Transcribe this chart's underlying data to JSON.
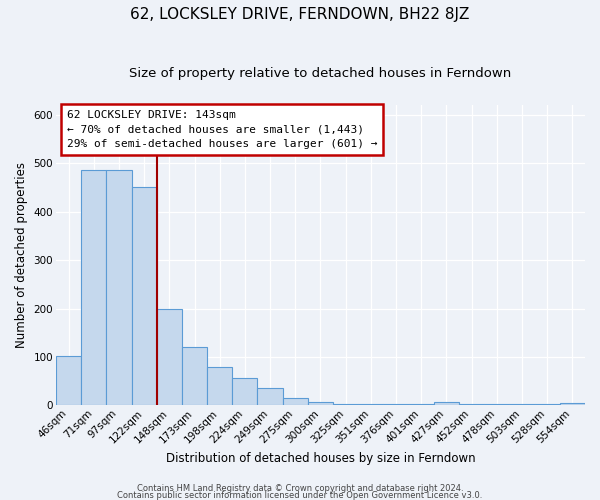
{
  "title": "62, LOCKSLEY DRIVE, FERNDOWN, BH22 8JZ",
  "subtitle": "Size of property relative to detached houses in Ferndown",
  "xlabel": "Distribution of detached houses by size in Ferndown",
  "ylabel": "Number of detached properties",
  "footer_line1": "Contains HM Land Registry data © Crown copyright and database right 2024.",
  "footer_line2": "Contains public sector information licensed under the Open Government Licence v3.0.",
  "categories": [
    "46sqm",
    "71sqm",
    "97sqm",
    "122sqm",
    "148sqm",
    "173sqm",
    "198sqm",
    "224sqm",
    "249sqm",
    "275sqm",
    "300sqm",
    "325sqm",
    "351sqm",
    "376sqm",
    "401sqm",
    "427sqm",
    "452sqm",
    "478sqm",
    "503sqm",
    "528sqm",
    "554sqm"
  ],
  "values": [
    103,
    487,
    487,
    452,
    200,
    120,
    80,
    57,
    37,
    15,
    8,
    2,
    2,
    2,
    2,
    8,
    2,
    2,
    2,
    2,
    5
  ],
  "bar_color": "#c5d8ed",
  "bar_edge_color": "#5b9bd5",
  "bar_edge_width": 0.8,
  "vline_color": "#a00000",
  "annotation_title": "62 LOCKSLEY DRIVE: 143sqm",
  "annotation_line1": "← 70% of detached houses are smaller (1,443)",
  "annotation_line2": "29% of semi-detached houses are larger (601) →",
  "annotation_box_color": "#ffffff",
  "annotation_box_edge": "#c00000",
  "ylim": [
    0,
    620
  ],
  "background_color": "#eef2f8",
  "grid_color": "#ffffff",
  "title_fontsize": 11,
  "subtitle_fontsize": 9.5,
  "axis_label_fontsize": 8.5,
  "tick_fontsize": 7.5,
  "annotation_fontsize": 8,
  "footer_fontsize": 6
}
